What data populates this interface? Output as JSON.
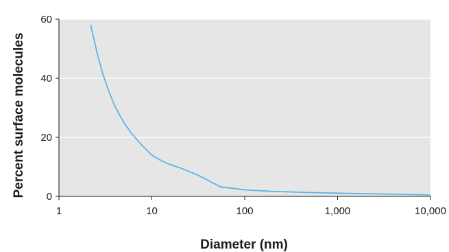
{
  "chart_data": {
    "type": "line",
    "title": "",
    "xlabel": "Diameter (nm)",
    "ylabel": "Percent surface molecules",
    "x_scale": "log",
    "xlim": [
      1,
      10000
    ],
    "ylim": [
      0,
      60
    ],
    "x_ticks": [
      1,
      10,
      100,
      1000,
      10000
    ],
    "x_tick_labels": [
      "1",
      "10",
      "100",
      "1,000",
      "10,000"
    ],
    "y_ticks": [
      0,
      20,
      40,
      60
    ],
    "y_tick_labels": [
      "0",
      "20",
      "40",
      "60"
    ],
    "grid": "horizontal",
    "legend": "none",
    "colors": {
      "line": "#5ab4e5",
      "plot_background": "#e6e6e6",
      "grid": "#ffffff"
    },
    "series": [
      {
        "x": [
          2.2,
          2.6,
          3,
          3.5,
          4,
          5,
          6,
          7,
          8,
          10,
          12,
          15,
          20,
          30,
          40,
          55,
          80,
          100,
          200,
          500,
          1000,
          2000,
          5000,
          10000
        ],
        "y": [
          58,
          48,
          41,
          35,
          30.5,
          25,
          21.5,
          19,
          17,
          14,
          12.5,
          11,
          9.7,
          7.5,
          5.5,
          3.2,
          2.6,
          2.2,
          1.7,
          1.3,
          1.1,
          0.9,
          0.7,
          0.5
        ]
      }
    ]
  }
}
